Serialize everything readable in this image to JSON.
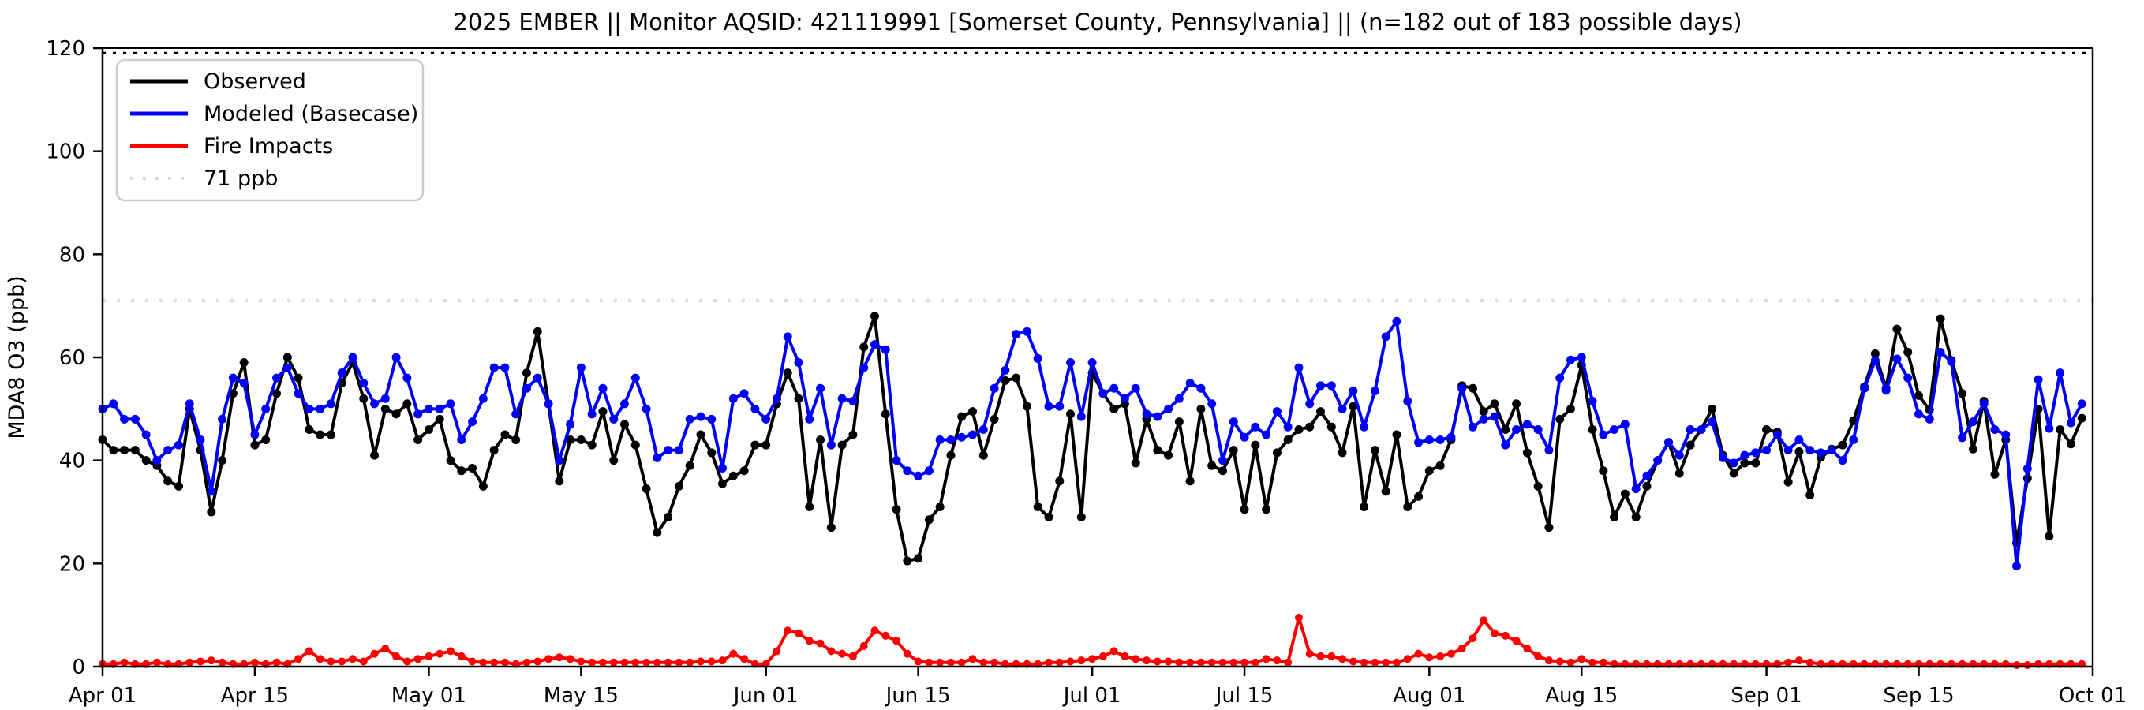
{
  "title": "2025 EMBER || Monitor AQSID: 421119991 [Somerset County, Pennsylvania] || (n=182 out of 183 possible days)",
  "y_axis": {
    "label": "MDA8 O3 (ppb)",
    "ticks": [
      0,
      20,
      40,
      60,
      80,
      100,
      120
    ],
    "range": [
      0,
      120
    ]
  },
  "x_axis": {
    "tick_labels": [
      "Apr 01",
      "Apr 15",
      "May 01",
      "May 15",
      "Jun 01",
      "Jun 15",
      "Jul 01",
      "Jul 15",
      "Aug 01",
      "Aug 15",
      "Sep 01",
      "Sep 15",
      "Oct 01"
    ],
    "tick_days": [
      0,
      14,
      30,
      44,
      61,
      75,
      91,
      105,
      122,
      136,
      153,
      167,
      183
    ]
  },
  "legend": {
    "items": [
      {
        "label": "Observed",
        "color": "#000000",
        "style": "solid"
      },
      {
        "label": "Modeled (Basecase)",
        "color": "#0000ff",
        "style": "solid"
      },
      {
        "label": "Fire Impacts",
        "color": "#ff0000",
        "style": "solid"
      },
      {
        "label": "71 ppb",
        "color": "#d9d9d9",
        "style": "dotted"
      }
    ]
  },
  "threshold": {
    "value": 71,
    "label": "71 ppb",
    "color": "#d9d9d9"
  },
  "chart_data": {
    "type": "line",
    "x_start": "Apr 01",
    "x_end": "Sep 30",
    "n_points": 183,
    "months": [
      {
        "name": "Apr",
        "days": 30
      },
      {
        "name": "May",
        "days": 31
      },
      {
        "name": "Jun",
        "days": 30
      },
      {
        "name": "Jul",
        "days": 31
      },
      {
        "name": "Aug",
        "days": 31
      },
      {
        "name": "Sep",
        "days": 30
      }
    ],
    "ylim": [
      0,
      120
    ],
    "grid": false,
    "legend_position": "upper left",
    "series": [
      {
        "name": "Observed",
        "color": "#000000",
        "values": [
          44,
          42,
          42,
          42,
          40,
          39,
          36,
          35,
          50,
          42,
          30,
          40,
          53,
          59,
          43,
          44,
          53,
          60,
          56,
          46,
          45,
          45,
          55,
          59,
          52,
          41,
          50,
          49,
          51,
          44,
          46,
          48,
          40,
          38,
          38.5,
          35,
          42,
          45,
          44,
          57,
          65,
          51,
          36,
          44,
          44,
          43,
          49.5,
          40,
          47,
          43,
          34.5,
          26,
          29,
          35,
          39,
          45,
          41.5,
          35.5,
          37,
          38,
          43,
          43,
          51,
          57,
          52,
          31,
          44,
          27,
          43,
          45,
          62,
          68,
          49,
          30.5,
          20.5,
          21,
          28.5,
          31,
          41,
          48.5,
          49.5,
          41,
          48,
          55.5,
          56,
          50.5,
          31,
          29,
          36,
          49,
          29,
          57,
          53,
          50,
          51,
          39.5,
          48,
          42,
          41,
          47.5,
          36,
          50,
          39,
          38,
          42,
          30.5,
          43,
          30.5,
          41.5,
          44,
          46,
          46.5,
          49.5,
          46.5,
          41.5,
          50.5,
          31,
          42,
          34,
          45,
          31,
          33,
          38,
          39,
          44,
          54.5,
          54,
          49.5,
          51,
          46,
          51,
          41.5,
          35,
          27,
          48,
          50,
          58.5,
          46,
          38,
          29,
          33.5,
          29,
          35,
          40,
          43.5,
          37.5,
          43,
          46,
          50,
          41,
          37.5,
          39.5,
          39.5,
          46,
          45.5,
          35.8,
          41.7,
          33.3,
          40.6,
          42.2,
          43,
          47.7,
          54.3,
          60.7,
          54,
          65.5,
          61,
          52.6,
          49.8,
          67.5,
          59.4,
          53,
          42.2,
          51.5,
          37.3,
          44,
          24,
          36.5,
          50,
          25.3,
          46,
          43.2,
          48.2
        ]
      },
      {
        "name": "Modeled (Basecase)",
        "color": "#0000ff",
        "values": [
          50,
          51,
          48,
          48,
          45,
          40,
          42,
          43,
          51,
          44,
          34,
          48,
          56,
          55,
          45,
          50,
          56,
          58,
          53,
          50,
          50,
          51,
          57,
          60,
          55,
          51,
          52,
          60,
          56,
          49,
          50,
          50,
          51,
          44,
          47.5,
          52,
          58,
          58,
          49,
          54,
          56,
          51,
          40,
          47,
          58,
          49,
          54,
          48,
          51,
          56,
          50,
          40.5,
          42,
          42,
          48,
          48.5,
          48,
          38.5,
          52,
          53,
          50,
          48,
          52,
          64,
          59,
          48,
          54,
          43,
          52,
          51.5,
          58,
          62.5,
          61.5,
          40,
          38,
          37,
          38,
          44,
          44,
          44.5,
          45,
          46,
          54,
          57.5,
          64.5,
          65,
          59.8,
          50.5,
          50.5,
          59,
          48.5,
          59,
          53,
          54,
          52,
          54,
          49,
          48.5,
          50,
          52,
          55,
          54,
          51,
          40,
          47.5,
          44.5,
          46.5,
          45,
          49.5,
          46.5,
          58,
          51,
          54.5,
          54.5,
          50,
          53.5,
          46.5,
          53.5,
          64,
          67,
          51.5,
          43.5,
          44,
          44,
          44.5,
          54,
          46.5,
          48,
          48.5,
          43,
          46,
          47,
          46,
          42,
          56,
          59.5,
          60,
          51.5,
          45,
          46,
          47,
          34.5,
          37,
          40,
          43.5,
          41,
          46,
          46,
          47.5,
          40.5,
          39.5,
          41,
          41.5,
          42,
          45,
          42,
          44,
          42,
          41.5,
          42,
          40,
          44,
          54,
          59.4,
          53.6,
          59.7,
          56,
          49,
          48,
          61,
          59.2,
          44.4,
          47.5,
          51,
          46,
          45,
          19.5,
          38.4,
          55.7,
          46.2,
          57,
          47.3,
          51
        ]
      },
      {
        "name": "Fire Impacts",
        "color": "#ff0000",
        "values": [
          0.5,
          0.5,
          0.8,
          0.5,
          0.5,
          0.8,
          0.5,
          0.5,
          0.8,
          1,
          1.2,
          0.8,
          0.5,
          0.5,
          0.8,
          0.5,
          0.8,
          0.5,
          1.5,
          3,
          1.5,
          1,
          1,
          1.5,
          1,
          2.5,
          3.5,
          2,
          1,
          1.5,
          2,
          2.5,
          3,
          2,
          1,
          0.8,
          0.8,
          0.8,
          0.5,
          0.8,
          1,
          1.5,
          1.8,
          1.5,
          1,
          0.8,
          0.8,
          0.8,
          0.8,
          0.8,
          0.8,
          0.8,
          0.8,
          0.8,
          0.8,
          1,
          1,
          1.2,
          2.5,
          1.5,
          0.5,
          0.5,
          3,
          7,
          6.5,
          5,
          4.5,
          3,
          2.5,
          2,
          4,
          7,
          6,
          5,
          2.5,
          1,
          0.8,
          0.8,
          0.8,
          0.8,
          1.5,
          0.8,
          0.8,
          0.5,
          0.5,
          0.5,
          0.5,
          0.8,
          0.8,
          1,
          1.2,
          1.5,
          2,
          3,
          2,
          1.5,
          1.2,
          1,
          1,
          0.8,
          0.8,
          0.8,
          0.8,
          0.8,
          0.8,
          0.8,
          0.8,
          1.5,
          1.2,
          0.8,
          9.5,
          2.5,
          2,
          2,
          1.5,
          1,
          0.8,
          0.8,
          0.8,
          0.8,
          1.5,
          2.5,
          1.8,
          2,
          2.5,
          3.5,
          5.5,
          9,
          6.5,
          6,
          5,
          3.5,
          2,
          1.2,
          1,
          0.8,
          1.5,
          0.8,
          0.8,
          0.5,
          0.5,
          0.5,
          0.5,
          0.5,
          0.5,
          0.5,
          0.5,
          0.5,
          0.5,
          0.5,
          0.5,
          0.5,
          0.5,
          0.5,
          0.5,
          0.8,
          1.2,
          0.8,
          0.5,
          0.5,
          0.5,
          0.5,
          0.5,
          0.5,
          0.5,
          0.5,
          0.5,
          0.5,
          0.5,
          0.5,
          0.5,
          0.5,
          0.5,
          0.5,
          0.5,
          0.5,
          0.3,
          0.3,
          0.5,
          0.5,
          0.5,
          0.5,
          0.5
        ]
      }
    ]
  }
}
